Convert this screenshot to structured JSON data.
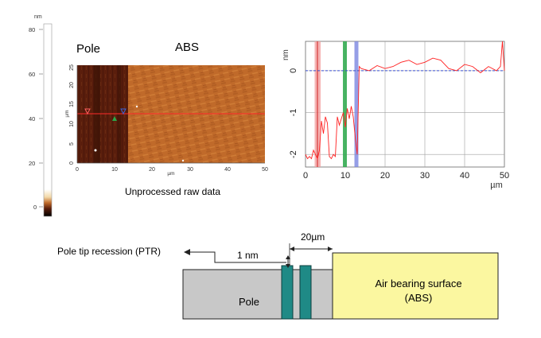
{
  "colorbar": {
    "unit": "nm",
    "ticks": [
      "80",
      "60",
      "40",
      "20",
      "0"
    ],
    "values": [
      80,
      60,
      40,
      20,
      0
    ]
  },
  "afm_image": {
    "title_left": "Pole",
    "title_right": "ABS",
    "caption": "Unprocessed raw data",
    "axis_unit": "µm",
    "x_ticks": [
      "0",
      "10",
      "20",
      "30",
      "40",
      "50"
    ],
    "y_ticks": [
      "0",
      "5",
      "10",
      "15",
      "20",
      "25"
    ],
    "colors": {
      "pole": "#5a1e0c",
      "abs": "#c06a2a",
      "scan_line": "#ff2a2a",
      "marker_green": "#2aa84a",
      "marker_blue": "#3a62d8",
      "marker_red": "#ff4040"
    }
  },
  "profile_chart": {
    "ylabel": "nm",
    "xlabel": "µm",
    "x_ticks": [
      "0",
      "10",
      "20",
      "30",
      "40",
      "50"
    ],
    "y_ticks": [
      "0",
      "-1",
      "-2"
    ],
    "colors": {
      "profile": "#ff2020",
      "baseline": "#3a4fd0",
      "band_red": "#f2a0a0",
      "band_green": "#2aa84a",
      "band_blue": "#7b86e0",
      "grid": "#a0a0a0"
    }
  },
  "chart_data": {
    "type": "line",
    "xlabel": "µm",
    "ylabel": "nm",
    "xlim": [
      0,
      50
    ],
    "ylim": [
      -2.3,
      0.7
    ],
    "grid": true,
    "series": [
      {
        "x": [
          0,
          0.5,
          1,
          1.5,
          2,
          2.5,
          3,
          3.5,
          4,
          4.5,
          5,
          5.5,
          6,
          6.5,
          7,
          7.5,
          8,
          8.5,
          9,
          9.5,
          10,
          10.5,
          11,
          11.5,
          12,
          12.5,
          13,
          13.5,
          14,
          16,
          18,
          20,
          22,
          24,
          26,
          28,
          30,
          32,
          34,
          36,
          38,
          40,
          42,
          44,
          46,
          48,
          49,
          49.5,
          50
        ],
        "y": [
          -2.0,
          -2.1,
          -2.05,
          -2.1,
          -1.9,
          -2.0,
          -2.1,
          -1.9,
          -1.2,
          -1.5,
          -1.1,
          -1.25,
          -2.05,
          -2.1,
          -2.0,
          -2.05,
          -1.1,
          -1.3,
          -1.15,
          -1.0,
          -1.35,
          -0.9,
          -1.15,
          -0.85,
          -1.1,
          -1.6,
          -2.0,
          0.1,
          0.05,
          0.0,
          0.12,
          0.05,
          0.1,
          0.2,
          0.25,
          0.15,
          0.2,
          0.3,
          0.25,
          0.05,
          0.0,
          0.15,
          0.1,
          -0.05,
          0.1,
          0.0,
          0.1,
          0.7,
          0.0
        ]
      }
    ]
  },
  "schematic": {
    "ptr_label": "Pole tip recession (PTR)",
    "gap_label": "1 nm",
    "width_label": "20µm",
    "pole_label": "Pole",
    "abs_label_line1": "Air bearing surface",
    "abs_label_line2": "(ABS)",
    "colors": {
      "pole": "#c8c8c8",
      "abs": "#fbf7a0",
      "tip": "#1f8a86"
    }
  }
}
